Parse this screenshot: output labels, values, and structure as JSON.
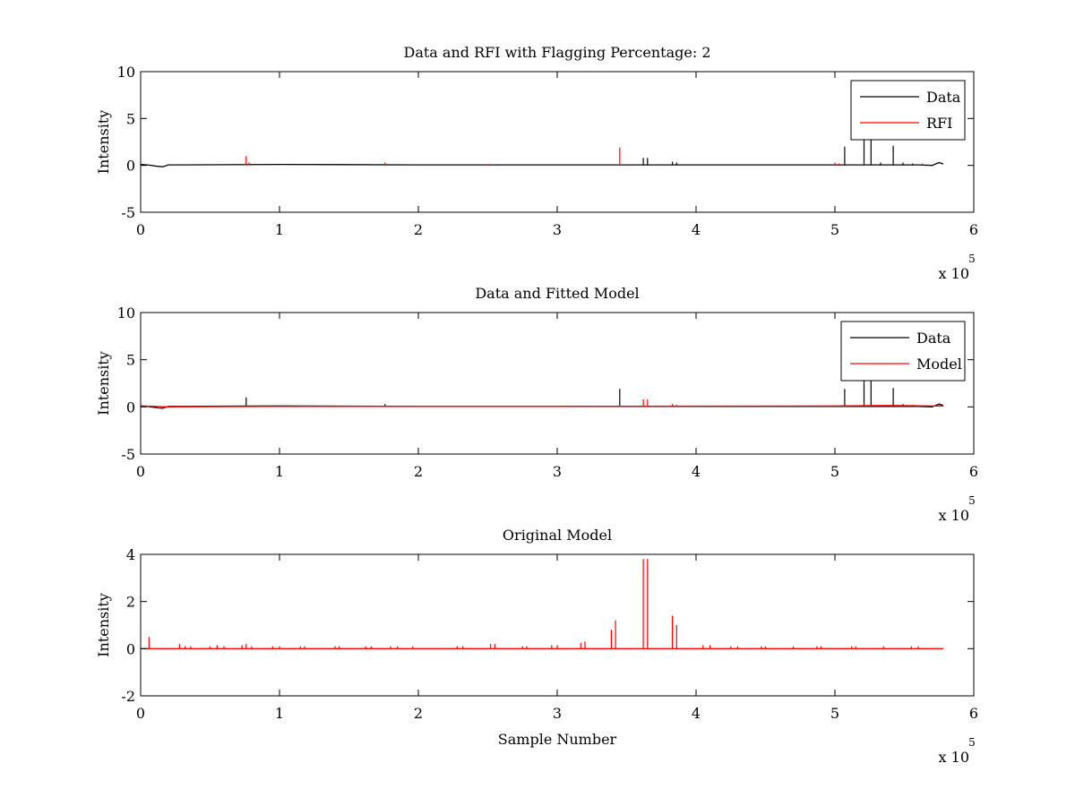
{
  "figure": {
    "background": "#ffffff",
    "axes_color": "#000000",
    "data_color": "#000000",
    "model_color": "#ff0000"
  },
  "chart_data": [
    {
      "type": "line",
      "title": "Data and RFI with Flagging Percentage: 2",
      "xlabel": "",
      "ylabel": "Intensity",
      "xlim": [
        0,
        600000
      ],
      "ylim": [
        -5,
        10
      ],
      "xticks": [
        "0",
        "1",
        "2",
        "3",
        "4",
        "5",
        "6"
      ],
      "yticks": [
        "-5",
        "0",
        "5",
        "10"
      ],
      "x_exponent": "x 10",
      "x_exponent_power": "5",
      "legend": {
        "position": "top-right",
        "entries": [
          "Data",
          "RFI"
        ]
      },
      "series": [
        {
          "name": "Data",
          "color": "#000000",
          "baseline": [
            [
              0,
              0.1
            ],
            [
              5000,
              0.05
            ],
            [
              12000,
              -0.1
            ],
            [
              16000,
              -0.15
            ],
            [
              20000,
              0.05
            ],
            [
              30000,
              0.05
            ],
            [
              100000,
              0.1
            ],
            [
              200000,
              0.05
            ],
            [
              300000,
              0.05
            ],
            [
              400000,
              0.05
            ],
            [
              500000,
              0.05
            ],
            [
              560000,
              0.05
            ],
            [
              570000,
              0.0
            ],
            [
              575000,
              0.3
            ],
            [
              578000,
              0.15
            ]
          ],
          "spikes": [
            [
              362000,
              0.8
            ],
            [
              365000,
              0.8
            ],
            [
              383000,
              0.4
            ],
            [
              386000,
              0.3
            ],
            [
              507000,
              2.0
            ],
            [
              521000,
              3.2
            ],
            [
              526000,
              3.1
            ],
            [
              533000,
              0.3
            ],
            [
              542000,
              2.1
            ],
            [
              549000,
              0.3
            ],
            [
              556000,
              0.2
            ]
          ]
        },
        {
          "name": "RFI",
          "color": "#ff0000",
          "baseline": [],
          "spikes": [
            [
              76000,
              1.0
            ],
            [
              78000,
              0.3
            ],
            [
              176000,
              0.3
            ],
            [
              250000,
              0.1
            ],
            [
              345000,
              1.9
            ],
            [
              500000,
              0.3
            ],
            [
              503000,
              0.2
            ],
            [
              563000,
              0.2
            ]
          ]
        }
      ]
    },
    {
      "type": "line",
      "title": "Data and Fitted Model",
      "xlabel": "",
      "ylabel": "Intensity",
      "xlim": [
        0,
        600000
      ],
      "ylim": [
        -5,
        10
      ],
      "xticks": [
        "0",
        "1",
        "2",
        "3",
        "4",
        "5",
        "6"
      ],
      "yticks": [
        "-5",
        "0",
        "5",
        "10"
      ],
      "x_exponent": "x 10",
      "x_exponent_power": "5",
      "legend": {
        "position": "top-right",
        "entries": [
          "Data",
          "Model"
        ]
      },
      "series": [
        {
          "name": "Data",
          "color": "#000000",
          "baseline": [
            [
              0,
              0.1
            ],
            [
              5000,
              0.05
            ],
            [
              12000,
              -0.1
            ],
            [
              16000,
              -0.15
            ],
            [
              20000,
              0.05
            ],
            [
              30000,
              0.05
            ],
            [
              100000,
              0.1
            ],
            [
              200000,
              0.05
            ],
            [
              300000,
              0.05
            ],
            [
              400000,
              0.05
            ],
            [
              500000,
              0.05
            ],
            [
              560000,
              0.05
            ],
            [
              570000,
              0.0
            ],
            [
              575000,
              0.3
            ],
            [
              578000,
              0.15
            ]
          ],
          "spikes": [
            [
              76000,
              1.0
            ],
            [
              176000,
              0.3
            ],
            [
              345000,
              1.9
            ],
            [
              507000,
              1.9
            ],
            [
              521000,
              3.2
            ],
            [
              526000,
              3.1
            ],
            [
              542000,
              2.0
            ],
            [
              549000,
              0.3
            ],
            [
              556000,
              0.2
            ]
          ]
        },
        {
          "name": "Model",
          "color": "#ff0000",
          "baseline": [
            [
              0,
              0.1
            ],
            [
              20000,
              0.0
            ],
            [
              100000,
              0.05
            ],
            [
              300000,
              0.05
            ],
            [
              500000,
              0.1
            ],
            [
              540000,
              0.15
            ],
            [
              570000,
              0.1
            ],
            [
              578000,
              0.1
            ]
          ],
          "spikes": [
            [
              362000,
              0.8
            ],
            [
              365000,
              0.8
            ],
            [
              383000,
              0.3
            ],
            [
              386000,
              0.2
            ]
          ]
        }
      ]
    },
    {
      "type": "line",
      "title": "Original Model",
      "xlabel": "Sample Number",
      "ylabel": "Intensity",
      "xlim": [
        0,
        600000
      ],
      "ylim": [
        -2,
        4
      ],
      "xticks": [
        "0",
        "1",
        "2",
        "3",
        "4",
        "5",
        "6"
      ],
      "yticks": [
        "-2",
        "0",
        "2",
        "4"
      ],
      "x_exponent": "x 10",
      "x_exponent_power": "5",
      "legend": null,
      "series": [
        {
          "color": "#ff0000",
          "baseline": [
            [
              0,
              0.0
            ],
            [
              578000,
              0.0
            ]
          ],
          "spikes": [
            [
              6000,
              0.5
            ],
            [
              28000,
              0.2
            ],
            [
              32000,
              0.1
            ],
            [
              36000,
              0.1
            ],
            [
              50000,
              0.1
            ],
            [
              55000,
              0.15
            ],
            [
              60000,
              0.1
            ],
            [
              73000,
              0.15
            ],
            [
              76000,
              0.2
            ],
            [
              80000,
              0.1
            ],
            [
              95000,
              0.1
            ],
            [
              100000,
              0.1
            ],
            [
              115000,
              0.1
            ],
            [
              118000,
              0.1
            ],
            [
              140000,
              0.1
            ],
            [
              143000,
              0.1
            ],
            [
              162000,
              0.1
            ],
            [
              166000,
              0.1
            ],
            [
              180000,
              0.1
            ],
            [
              185000,
              0.1
            ],
            [
              196000,
              0.1
            ],
            [
              228000,
              0.1
            ],
            [
              232000,
              0.1
            ],
            [
              252000,
              0.2
            ],
            [
              255000,
              0.2
            ],
            [
              275000,
              0.1
            ],
            [
              278000,
              0.1
            ],
            [
              296000,
              0.15
            ],
            [
              300000,
              0.15
            ],
            [
              317000,
              0.25
            ],
            [
              320000,
              0.3
            ],
            [
              339000,
              0.8
            ],
            [
              342000,
              1.2
            ],
            [
              362000,
              3.8
            ],
            [
              365000,
              3.8
            ],
            [
              383000,
              1.4
            ],
            [
              386000,
              1.0
            ],
            [
              405000,
              0.15
            ],
            [
              410000,
              0.15
            ],
            [
              425000,
              0.1
            ],
            [
              430000,
              0.1
            ],
            [
              447000,
              0.1
            ],
            [
              450000,
              0.1
            ],
            [
              470000,
              0.1
            ],
            [
              487000,
              0.1
            ],
            [
              490000,
              0.1
            ],
            [
              512000,
              0.1
            ],
            [
              515000,
              0.1
            ],
            [
              535000,
              0.1
            ],
            [
              555000,
              0.1
            ],
            [
              560000,
              0.1
            ]
          ]
        }
      ]
    }
  ]
}
